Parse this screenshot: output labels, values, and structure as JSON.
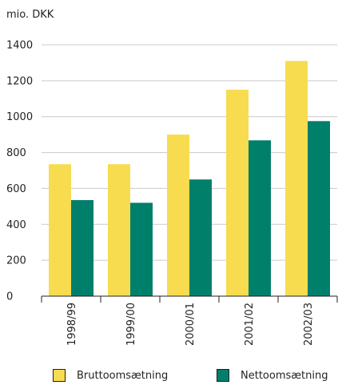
{
  "chart_data": {
    "type": "bar",
    "unit_label": "mio. DKK",
    "categories": [
      "1998/99",
      "1999/00",
      "2000/01",
      "2001/02",
      "2002/03"
    ],
    "series": [
      {
        "name": "Bruttoomsætning",
        "values": [
          735,
          735,
          900,
          1150,
          1310
        ],
        "color": "#f7dc4f"
      },
      {
        "name": "Nettoomsætning",
        "values": [
          535,
          520,
          650,
          868,
          975
        ],
        "color": "#007f6a"
      }
    ],
    "ylim": [
      0,
      1400
    ],
    "yticks": [
      "0",
      "200",
      "400",
      "600",
      "800",
      "1000",
      "1200",
      "1400"
    ],
    "grid": true,
    "legend_position": "bottom"
  }
}
